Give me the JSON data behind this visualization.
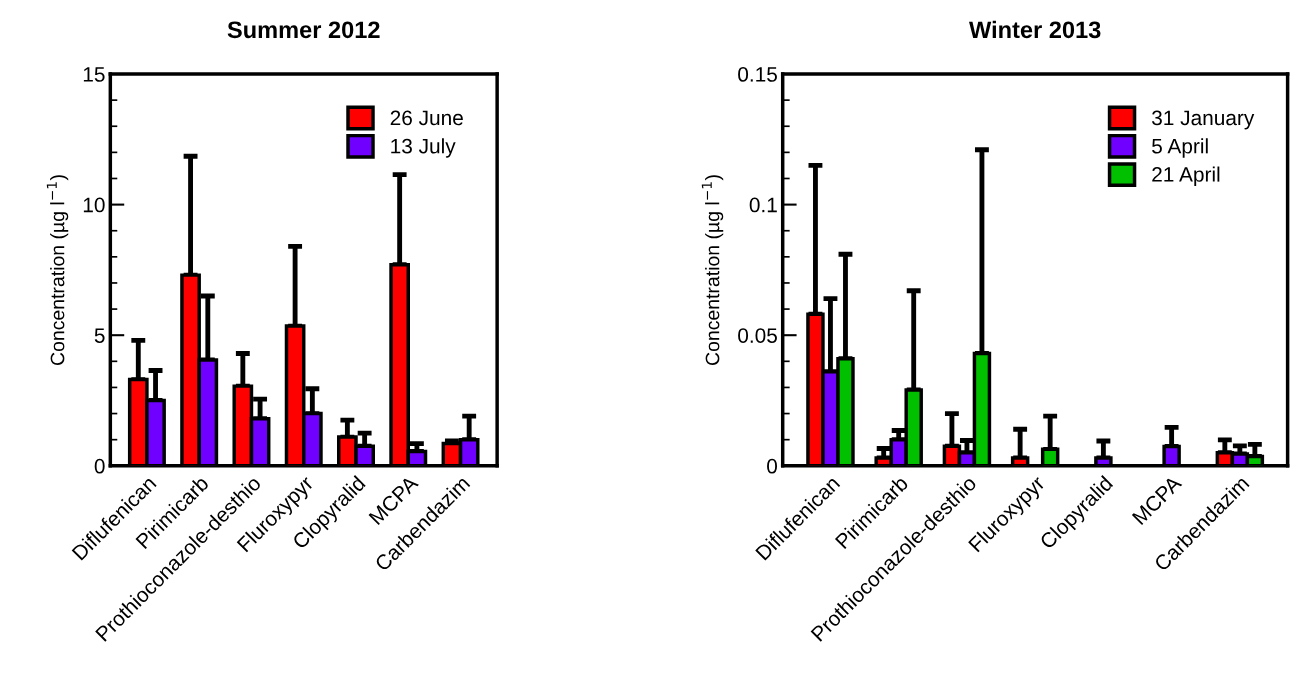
{
  "chart_data": [
    {
      "type": "bar",
      "title": "Summer 2012",
      "ylabel": "Concentration (µg l$^{−1}$)",
      "categories": [
        "Diflufenican",
        "Pirimicarb",
        "Prothioconazole-desthio",
        "Fluroxypyr",
        "Clopyralid",
        "MCPA",
        "Carbendazim"
      ],
      "series": [
        {
          "name": "26 June",
          "color": "#ff0000",
          "values": [
            3.3,
            7.3,
            3.05,
            5.35,
            1.1,
            7.7,
            0.85
          ],
          "errors": [
            [
              3.3,
              4.8
            ],
            [
              7.3,
              11.85
            ],
            [
              3.05,
              4.3
            ],
            [
              5.35,
              8.4
            ],
            [
              1.1,
              1.75
            ],
            [
              7.7,
              11.15
            ],
            [
              0.85,
              0.95
            ]
          ]
        },
        {
          "name": "13 July",
          "color": "#7000ff",
          "values": [
            2.5,
            4.05,
            1.8,
            2.0,
            0.75,
            0.55,
            1.0
          ],
          "errors": [
            [
              2.5,
              3.65
            ],
            [
              4.05,
              6.5
            ],
            [
              1.8,
              2.55
            ],
            [
              2.0,
              2.95
            ],
            [
              0.75,
              1.25
            ],
            [
              0.55,
              0.85
            ],
            [
              1.0,
              1.9
            ]
          ]
        }
      ],
      "ylim": [
        0,
        15
      ],
      "yticks": [
        0,
        5,
        10,
        15
      ],
      "grid": false,
      "legend": "top right"
    },
    {
      "type": "bar",
      "title": "Winter 2013",
      "ylabel": "Concentration (µg l$^{−1}$)",
      "categories": [
        "Diflufenican",
        "Pirimicarb",
        "Prothioconazole-desthio",
        "Fluroxypyr",
        "Clopyralid",
        "MCPA",
        "Carbendazim"
      ],
      "series": [
        {
          "name": "31 January",
          "color": "#ff0000",
          "values": [
            0.058,
            0.003,
            0.0075,
            0.003,
            null,
            null,
            0.005
          ],
          "errors": [
            [
              0.058,
              0.115
            ],
            [
              0.003,
              0.0066
            ],
            [
              0.0075,
              0.02
            ],
            [
              0.003,
              0.014
            ],
            null,
            null,
            [
              0.005,
              0.0099
            ]
          ]
        },
        {
          "name": "5 April",
          "color": "#7000ff",
          "values": [
            0.036,
            0.01,
            0.005,
            null,
            0.003,
            0.0074,
            0.0045
          ],
          "errors": [
            [
              0.036,
              0.064
            ],
            [
              0.01,
              0.0135
            ],
            [
              0.005,
              0.0097
            ],
            null,
            [
              0.003,
              0.0095
            ],
            [
              0.0074,
              0.0147
            ],
            [
              0.0045,
              0.0076
            ]
          ]
        },
        {
          "name": "21 April",
          "color": "#00c000",
          "values": [
            0.041,
            0.029,
            0.043,
            0.0063,
            null,
            null,
            0.0036
          ],
          "errors": [
            [
              0.041,
              0.081
            ],
            [
              0.029,
              0.067
            ],
            [
              0.043,
              0.121
            ],
            [
              0.0063,
              0.019
            ],
            null,
            null,
            [
              0.0036,
              0.0082
            ]
          ]
        }
      ],
      "ylim": [
        0,
        0.15
      ],
      "yticks": [
        0,
        0.05,
        0.1,
        0.15
      ],
      "grid": false,
      "legend": "top right"
    }
  ]
}
